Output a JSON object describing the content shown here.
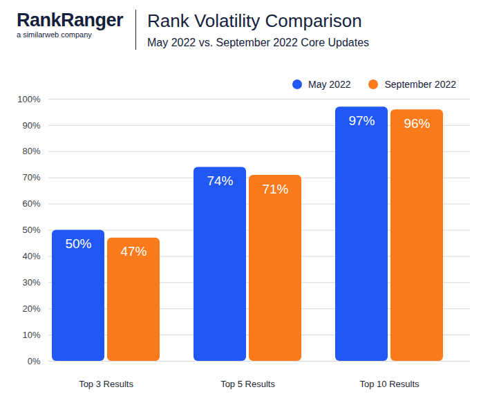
{
  "chart_data": {
    "type": "bar",
    "title": "Rank Volatility Comparison",
    "subtitle": "May 2022 vs. September 2022 Core Updates",
    "annotations": [
      "RankRanger",
      "a similarweb company"
    ],
    "categories": [
      "Top 3 Results",
      "Top 5 Results",
      "Top 10 Results"
    ],
    "series": [
      {
        "name": "May 2022",
        "color": "#2157f3",
        "values": [
          50,
          74,
          97
        ],
        "value_labels": [
          "50%",
          "74%",
          "97%"
        ]
      },
      {
        "name": "September 2022",
        "color": "#fb7a1c",
        "values": [
          47,
          71,
          96
        ],
        "value_labels": [
          "47%",
          "71%",
          "96%"
        ]
      }
    ],
    "ylim": [
      0,
      100
    ],
    "yticks": [
      {
        "value": 0,
        "label": "0%"
      },
      {
        "value": 10,
        "label": "10%"
      },
      {
        "value": 20,
        "label": "20%"
      },
      {
        "value": 30,
        "label": "30%"
      },
      {
        "value": 40,
        "label": "40%"
      },
      {
        "value": 50,
        "label": "50%"
      },
      {
        "value": 60,
        "label": "60%"
      },
      {
        "value": 70,
        "label": "70%"
      },
      {
        "value": 80,
        "label": "80%"
      },
      {
        "value": 90,
        "label": "90%"
      },
      {
        "value": 100,
        "label": "100%"
      }
    ],
    "grid": true,
    "legend": "top-right",
    "data_labels": true
  }
}
